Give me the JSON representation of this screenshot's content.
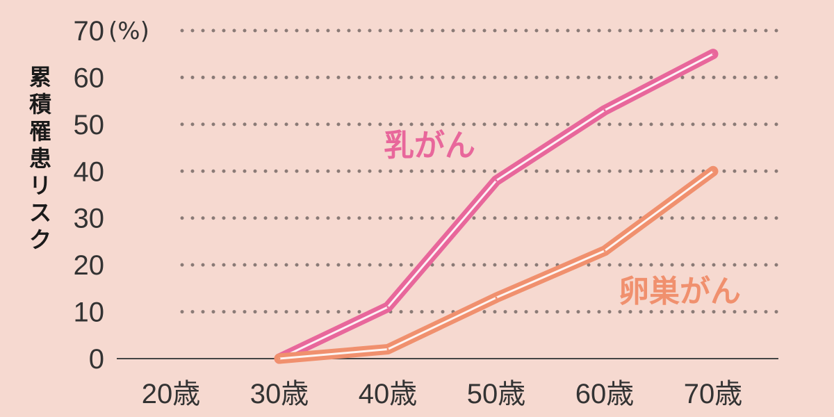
{
  "chart_data": {
    "type": "line",
    "ylabel": "累積罹患リスク",
    "yunit": "(%)",
    "ylim": [
      0,
      70
    ],
    "yticks": [
      0,
      10,
      20,
      30,
      40,
      50,
      60,
      70
    ],
    "categories": [
      "20歳",
      "30歳",
      "40歳",
      "50歳",
      "60歳",
      "70歳"
    ],
    "x": [
      20,
      30,
      40,
      50,
      60,
      70
    ],
    "series": [
      {
        "name": "乳がん",
        "x": [
          30,
          40,
          50,
          60,
          70
        ],
        "values": [
          0,
          11,
          38,
          53,
          65
        ],
        "color": "#e8679b"
      },
      {
        "name": "卵巣がん",
        "x": [
          30,
          40,
          50,
          60,
          70
        ],
        "values": [
          0,
          2,
          13,
          23,
          40
        ],
        "color": "#f0906e"
      }
    ],
    "grid": "dotted-horizontal",
    "legend": "inline-labels"
  }
}
